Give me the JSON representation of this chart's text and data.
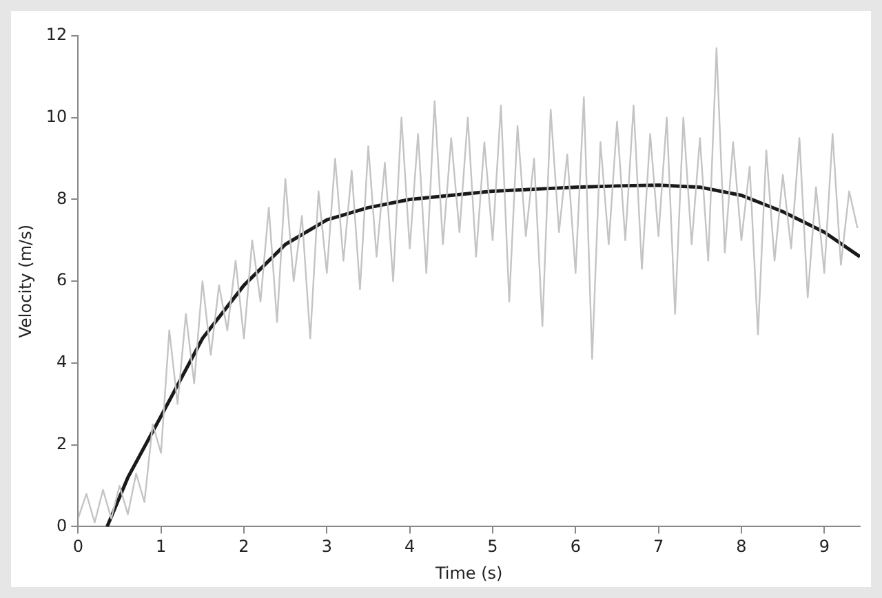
{
  "chart_data": {
    "type": "line",
    "xlabel": "Time (s)",
    "ylabel": "Velocity (m/s)",
    "xlim": [
      0,
      9.43
    ],
    "xticks": [
      0,
      1,
      2,
      3,
      4,
      5,
      6,
      7,
      8,
      9
    ],
    "ylim": [
      0,
      12
    ],
    "yticks": [
      0,
      2,
      4,
      6,
      8,
      10,
      12
    ],
    "grid": false,
    "legend": false,
    "marker": "none",
    "line_style": "solid",
    "series": [
      {
        "color": "#c4c4c4",
        "x": [
          0,
          0.1,
          0.2,
          0.3,
          0.4,
          0.5,
          0.6,
          0.7,
          0.8,
          0.9,
          1,
          1.1,
          1.2,
          1.3,
          1.4,
          1.5,
          1.6,
          1.7,
          1.8,
          1.9,
          2,
          2.1,
          2.2,
          2.3,
          2.4,
          2.5,
          2.6,
          2.7,
          2.8,
          2.9,
          3,
          3.1,
          3.2,
          3.3,
          3.4,
          3.5,
          3.6,
          3.7,
          3.8,
          3.9,
          4,
          4.1,
          4.2,
          4.3,
          4.4,
          4.5,
          4.6,
          4.7,
          4.8,
          4.9,
          5,
          5.1,
          5.2,
          5.3,
          5.4,
          5.5,
          5.6,
          5.7,
          5.8,
          5.9,
          6,
          6.1,
          6.2,
          6.3,
          6.4,
          6.5,
          6.6,
          6.7,
          6.8,
          6.9,
          7,
          7.1,
          7.2,
          7.3,
          7.4,
          7.5,
          7.6,
          7.7,
          7.8,
          7.9,
          8,
          8.1,
          8.2,
          8.3,
          8.4,
          8.5,
          8.6,
          8.7,
          8.8,
          8.9,
          9,
          9.1,
          9.2,
          9.3,
          9.4
        ],
        "values": [
          0.2,
          0.8,
          0.1,
          0.9,
          0.2,
          1.0,
          0.3,
          1.3,
          0.6,
          2.5,
          1.8,
          4.8,
          3.0,
          5.2,
          3.5,
          6.0,
          4.2,
          5.9,
          4.8,
          6.5,
          4.6,
          7.0,
          5.5,
          7.8,
          5.0,
          8.5,
          6.0,
          7.6,
          4.6,
          8.2,
          6.2,
          9.0,
          6.5,
          8.7,
          5.8,
          9.3,
          6.6,
          8.9,
          6.0,
          10.0,
          6.8,
          9.6,
          6.2,
          10.4,
          6.9,
          9.5,
          7.2,
          10.0,
          6.6,
          9.4,
          7.0,
          10.3,
          5.5,
          9.8,
          7.1,
          9.0,
          4.9,
          10.2,
          7.2,
          9.1,
          6.2,
          10.5,
          4.1,
          9.4,
          6.9,
          9.9,
          7.0,
          10.3,
          6.3,
          9.6,
          7.1,
          10.0,
          5.2,
          10.0,
          6.9,
          9.5,
          6.5,
          11.7,
          6.7,
          9.4,
          7.0,
          8.8,
          4.7,
          9.2,
          6.5,
          8.6,
          6.8,
          9.5,
          5.6,
          8.3,
          6.2,
          9.6,
          6.4,
          8.2,
          7.3
        ]
      },
      {
        "color": "#1a1a1a",
        "x": [
          0.35,
          0.6,
          1,
          1.5,
          2,
          2.5,
          3,
          3.5,
          4,
          4.5,
          5,
          5.5,
          6,
          6.5,
          7,
          7.5,
          8,
          8.5,
          9,
          9.43
        ],
        "values": [
          0,
          1.2,
          2.7,
          4.6,
          5.9,
          6.9,
          7.5,
          7.8,
          8.0,
          8.1,
          8.2,
          8.25,
          8.3,
          8.33,
          8.35,
          8.3,
          8.1,
          7.7,
          7.2,
          6.6
        ]
      }
    ]
  }
}
